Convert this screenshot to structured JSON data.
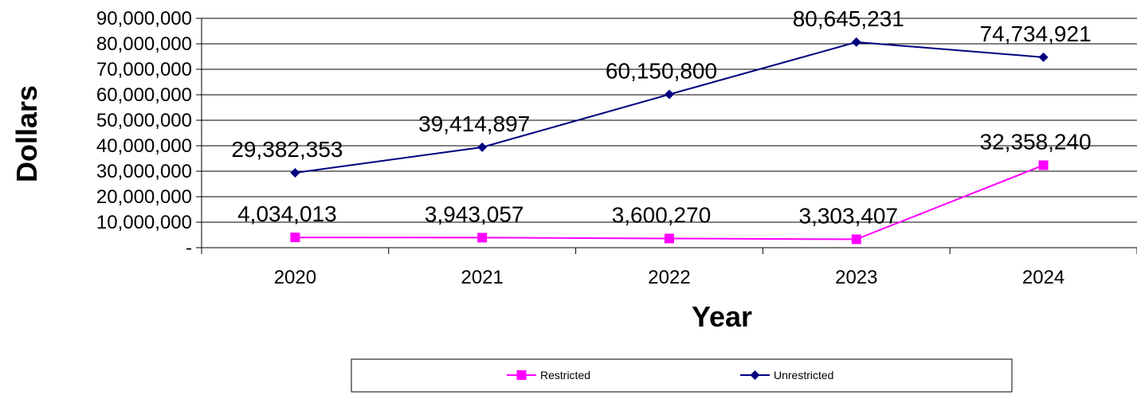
{
  "chart_data": {
    "type": "line",
    "xlabel": "Year",
    "ylabel": "Dollars",
    "categories": [
      "2020",
      "2021",
      "2022",
      "2023",
      "2024"
    ],
    "ylim": [
      0,
      90000000
    ],
    "y_ticks": [
      "-",
      "10,000,000",
      "20,000,000",
      "30,000,000",
      "40,000,000",
      "50,000,000",
      "60,000,000",
      "70,000,000",
      "80,000,000",
      "90,000,000"
    ],
    "grid": true,
    "legend_position": "bottom",
    "series": [
      {
        "name": "Restricted",
        "color": "#ff00ff",
        "marker": "square",
        "values": [
          4034013,
          3943057,
          3600270,
          3303407,
          32358240
        ],
        "labels": [
          "4,034,013",
          "3,943,057",
          "3,600,270",
          "3,303,407",
          "32,358,240"
        ]
      },
      {
        "name": "Unrestricted",
        "color": "#000080",
        "marker": "diamond",
        "values": [
          29382353,
          39414897,
          60150800,
          80645231,
          74734921
        ],
        "labels": [
          "29,382,353",
          "39,414,897",
          "60,150,800",
          "80,645,231",
          "74,734,921"
        ]
      }
    ]
  }
}
